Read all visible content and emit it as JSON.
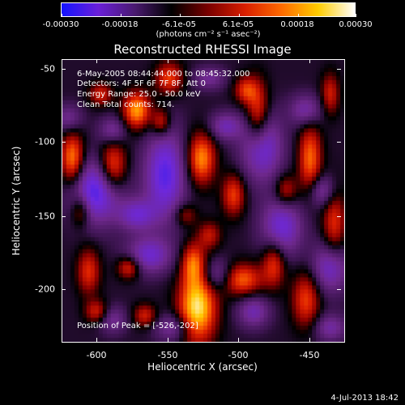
{
  "colorbar": {
    "tick_labels": [
      "-0.00030",
      "-0.00018",
      "-6.1e-05",
      "6.1e-05",
      "0.00018",
      "0.00030"
    ],
    "units": "(photons cm⁻² s⁻¹ asec⁻²)",
    "colors": [
      "#1414ff",
      "#6a1fd8",
      "#4a1a70",
      "#000000",
      "#7a0000",
      "#d81e00",
      "#ff6a00",
      "#ffcc00",
      "#ffffff"
    ]
  },
  "title": "Reconstructed RHESSI Image",
  "info": {
    "line1": "6-May-2005 08:44:44.000 to 08:45:32.000",
    "line2": "Detectors: 4F 5F 6F 7F 8F, Att 0",
    "line3": "Energy Range: 25.0 - 50.0 keV",
    "line4": "Clean    Total counts: 714."
  },
  "peak": "Position of Peak = [-526,-202]",
  "axes": {
    "xlabel": "Heliocentric X (arcsec)",
    "ylabel": "Heliocentric Y (arcsec)",
    "xticks": [
      "-600",
      "-550",
      "-500",
      "-450"
    ],
    "yticks": [
      "-50",
      "-100",
      "-150",
      "-200"
    ],
    "xlim": [
      -620,
      -420
    ],
    "ylim": [
      -240,
      -40
    ]
  },
  "footer": "4-Jul-2013 18:42"
}
